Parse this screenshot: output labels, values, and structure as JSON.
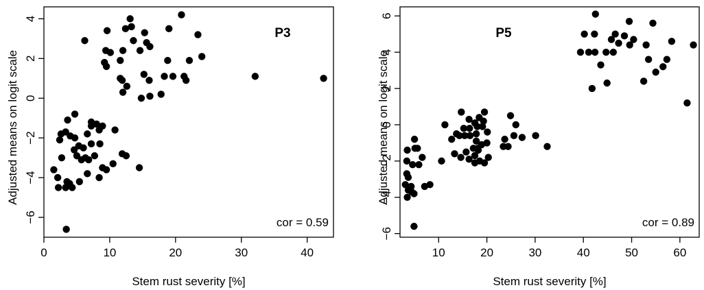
{
  "chart_data": [
    {
      "type": "scatter",
      "title": "P3",
      "xlabel": "Stem rust severity [%]",
      "ylabel": "Adjusted means on logit scale",
      "annotation": "cor = 0.59",
      "xlim": [
        0,
        44
      ],
      "ylim": [
        -7,
        4.6
      ],
      "xticks": [
        "0",
        "10",
        "20",
        "30",
        "40"
      ],
      "yticks": [
        "−6",
        "−4",
        "−2",
        "0",
        "2",
        "4"
      ],
      "xtick_values": [
        0,
        10,
        20,
        30,
        40
      ],
      "ytick_values": [
        -6,
        -4,
        -2,
        0,
        2,
        4
      ],
      "points": [
        [
          13.1,
          4.0
        ],
        [
          20.9,
          4.2
        ],
        [
          6.2,
          2.9
        ],
        [
          9.6,
          3.4
        ],
        [
          12.4,
          3.5
        ],
        [
          13.3,
          3.6
        ],
        [
          13.6,
          2.9
        ],
        [
          15.3,
          3.3
        ],
        [
          19.0,
          3.5
        ],
        [
          23.4,
          3.2
        ],
        [
          15.6,
          2.8
        ],
        [
          16.1,
          2.6
        ],
        [
          9.4,
          2.4
        ],
        [
          10.1,
          2.3
        ],
        [
          12.0,
          2.4
        ],
        [
          14.6,
          2.4
        ],
        [
          18.8,
          1.9
        ],
        [
          22.1,
          1.9
        ],
        [
          24.0,
          2.1
        ],
        [
          9.2,
          1.8
        ],
        [
          9.5,
          1.6
        ],
        [
          11.6,
          1.9
        ],
        [
          11.6,
          1.0
        ],
        [
          11.9,
          0.9
        ],
        [
          12.6,
          0.6
        ],
        [
          15.2,
          1.2
        ],
        [
          16.0,
          0.9
        ],
        [
          18.3,
          1.1
        ],
        [
          19.6,
          1.1
        ],
        [
          21.3,
          1.1
        ],
        [
          21.6,
          0.9
        ],
        [
          12.0,
          0.3
        ],
        [
          14.8,
          0.0
        ],
        [
          16.1,
          0.1
        ],
        [
          17.8,
          0.2
        ],
        [
          32.1,
          1.1
        ],
        [
          42.5,
          1.0
        ],
        [
          4.7,
          -0.8
        ],
        [
          3.6,
          -1.1
        ],
        [
          2.6,
          -1.8
        ],
        [
          3.3,
          -1.7
        ],
        [
          2.4,
          -2.1
        ],
        [
          4.0,
          -1.9
        ],
        [
          4.7,
          -2.0
        ],
        [
          6.6,
          -1.8
        ],
        [
          7.2,
          -1.4
        ],
        [
          7.2,
          -1.2
        ],
        [
          8.0,
          -1.3
        ],
        [
          8.9,
          -1.4
        ],
        [
          8.4,
          -1.6
        ],
        [
          10.8,
          -1.6
        ],
        [
          5.3,
          -2.4
        ],
        [
          4.6,
          -2.6
        ],
        [
          6.0,
          -2.5
        ],
        [
          7.2,
          -2.3
        ],
        [
          8.5,
          -2.3
        ],
        [
          5.0,
          -2.9
        ],
        [
          5.7,
          -3.1
        ],
        [
          6.3,
          -3.0
        ],
        [
          6.8,
          -3.1
        ],
        [
          7.7,
          -2.9
        ],
        [
          11.9,
          -2.8
        ],
        [
          12.5,
          -2.9
        ],
        [
          2.7,
          -3.0
        ],
        [
          8.9,
          -3.5
        ],
        [
          10.5,
          -3.3
        ],
        [
          9.5,
          -3.6
        ],
        [
          14.5,
          -3.5
        ],
        [
          1.5,
          -3.6
        ],
        [
          2.1,
          -4.0
        ],
        [
          6.6,
          -3.8
        ],
        [
          8.4,
          -4.0
        ],
        [
          5.4,
          -4.2
        ],
        [
          3.5,
          -4.2
        ],
        [
          3.9,
          -4.3
        ],
        [
          4.3,
          -4.5
        ],
        [
          3.3,
          -4.5
        ],
        [
          2.2,
          -4.5
        ],
        [
          3.4,
          -6.6
        ]
      ]
    },
    {
      "type": "scatter",
      "title": "P5",
      "xlabel": "Stem rust severity [%]",
      "ylabel": "Adjusted means on logit scale",
      "annotation": "cor = 0.89",
      "xlim": [
        2,
        64
      ],
      "ylim": [
        -6.2,
        6.5
      ],
      "xticks": [
        "10",
        "20",
        "30",
        "40",
        "50",
        "60"
      ],
      "yticks": [
        "−6",
        "−4",
        "−2",
        "0",
        "2",
        "4",
        "6"
      ],
      "xtick_values": [
        10,
        20,
        30,
        40,
        50,
        60
      ],
      "ytick_values": [
        -6,
        -4,
        -2,
        0,
        2,
        4,
        6
      ],
      "points": [
        [
          42.5,
          6.1
        ],
        [
          49.5,
          5.7
        ],
        [
          54.4,
          5.6
        ],
        [
          40.2,
          5.0
        ],
        [
          42.3,
          5.0
        ],
        [
          46.6,
          5.0
        ],
        [
          48.5,
          4.9
        ],
        [
          45.8,
          4.7
        ],
        [
          50.4,
          4.7
        ],
        [
          47.3,
          4.5
        ],
        [
          49.6,
          4.4
        ],
        [
          53.0,
          4.4
        ],
        [
          58.3,
          4.6
        ],
        [
          62.8,
          4.4
        ],
        [
          39.4,
          4.0
        ],
        [
          41.1,
          4.0
        ],
        [
          42.4,
          4.0
        ],
        [
          44.7,
          4.0
        ],
        [
          46.2,
          4.0
        ],
        [
          53.5,
          3.6
        ],
        [
          57.3,
          3.6
        ],
        [
          43.6,
          3.3
        ],
        [
          56.5,
          3.2
        ],
        [
          55.0,
          2.9
        ],
        [
          52.5,
          2.4
        ],
        [
          44.9,
          2.3
        ],
        [
          41.8,
          2.0
        ],
        [
          61.5,
          1.2
        ],
        [
          14.7,
          0.7
        ],
        [
          19.5,
          0.7
        ],
        [
          16.3,
          0.3
        ],
        [
          18.4,
          0.4
        ],
        [
          11.3,
          -0.0
        ],
        [
          17.5,
          0.1
        ],
        [
          19.3,
          0.2
        ],
        [
          24.9,
          0.5
        ],
        [
          26.0,
          0.0
        ],
        [
          15.2,
          -0.2
        ],
        [
          16.4,
          -0.2
        ],
        [
          18.0,
          -0.1
        ],
        [
          19.1,
          -0.1
        ],
        [
          13.7,
          -0.5
        ],
        [
          14.3,
          -0.6
        ],
        [
          15.4,
          -0.6
        ],
        [
          16.5,
          -0.6
        ],
        [
          17.8,
          -0.5
        ],
        [
          20.1,
          -0.4
        ],
        [
          25.6,
          -0.6
        ],
        [
          27.3,
          -0.7
        ],
        [
          30.1,
          -0.6
        ],
        [
          12.7,
          -0.8
        ],
        [
          17.8,
          -0.9
        ],
        [
          18.9,
          -1.1
        ],
        [
          17.2,
          -1.3
        ],
        [
          18.1,
          -1.3
        ],
        [
          20.0,
          -1.0
        ],
        [
          23.7,
          -0.8
        ],
        [
          24.4,
          -1.2
        ],
        [
          23.4,
          -1.2
        ],
        [
          32.5,
          -1.2
        ],
        [
          13.3,
          -1.6
        ],
        [
          14.6,
          -1.8
        ],
        [
          15.7,
          -1.5
        ],
        [
          17.5,
          -1.7
        ],
        [
          18.2,
          -1.4
        ],
        [
          20.3,
          -1.8
        ],
        [
          16.3,
          -1.9
        ],
        [
          10.6,
          -2.0
        ],
        [
          17.5,
          -2.1
        ],
        [
          18.5,
          -2.0
        ],
        [
          19.5,
          -2.1
        ],
        [
          3.5,
          -1.4
        ],
        [
          5.0,
          -0.8
        ],
        [
          5.1,
          -1.3
        ],
        [
          5.6,
          -1.3
        ],
        [
          6.6,
          -1.8
        ],
        [
          3.4,
          -2.0
        ],
        [
          4.6,
          -2.2
        ],
        [
          5.9,
          -2.2
        ],
        [
          3.4,
          -2.7
        ],
        [
          3.7,
          -2.9
        ],
        [
          4.3,
          -3.4
        ],
        [
          3.1,
          -3.3
        ],
        [
          3.7,
          -3.6
        ],
        [
          4.4,
          -3.7
        ],
        [
          7.1,
          -3.4
        ],
        [
          8.2,
          -3.3
        ],
        [
          4.9,
          -3.8
        ],
        [
          3.5,
          -4.0
        ],
        [
          4.9,
          -5.6
        ]
      ]
    }
  ]
}
